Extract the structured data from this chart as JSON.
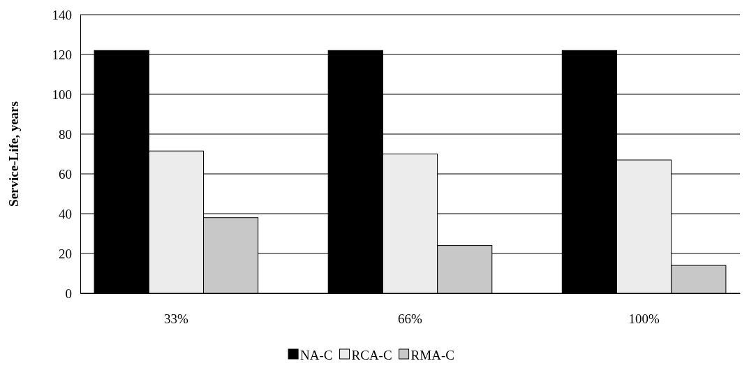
{
  "chart_data": {
    "type": "bar",
    "ylabel": "Service-Life, years",
    "categories": [
      "33%",
      "66%",
      "100%"
    ],
    "series": [
      {
        "name": "NA-C",
        "color": "#000000",
        "values": [
          122,
          122,
          122
        ]
      },
      {
        "name": "RCA-C",
        "color": "#ececec",
        "values": [
          71.5,
          70,
          67
        ]
      },
      {
        "name": "RMA-C",
        "color": "#c8c8c8",
        "values": [
          38,
          24,
          14
        ]
      }
    ],
    "ylim": [
      0,
      140
    ],
    "yticks": [
      0,
      20,
      40,
      60,
      80,
      100,
      120,
      140
    ],
    "grid": "y",
    "legend": "bottom"
  }
}
